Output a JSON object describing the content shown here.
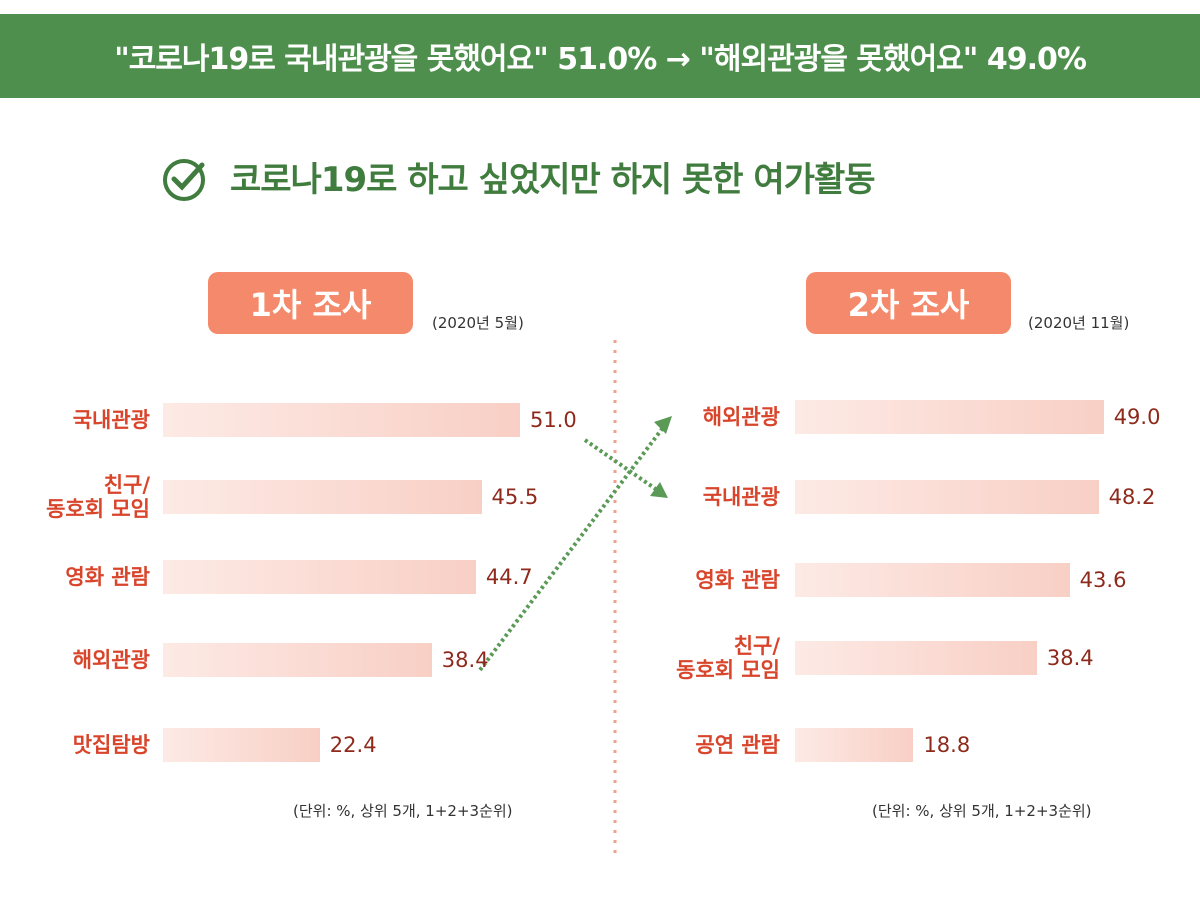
{
  "header": {
    "banner": "\"코로나19로 국내관광을 못했어요\" 51.0% → \"해외관광을 못했어요\" 49.0%",
    "title": "코로나19로 하고 싶었지만 하지 못한 여가활동"
  },
  "chart_data": [
    {
      "type": "bar",
      "title": "1차 조사",
      "subtitle": "(2020년 5월)",
      "color": "#f8cfc5",
      "categories": [
        "국내관광",
        "친구/\n동호회 모임",
        "영화 관람",
        "해외관광",
        "맛집탐방"
      ],
      "values": [
        51.0,
        45.5,
        44.7,
        38.4,
        22.4
      ],
      "value_labels": [
        "51.0",
        "45.5",
        "44.7",
        "38.4",
        "22.4"
      ],
      "note": "(단위: %, 상위 5개, 1+2+3순위)"
    },
    {
      "type": "bar",
      "title": "2차 조사",
      "subtitle": "(2020년 11월)",
      "color": "#f8cfc5",
      "categories": [
        "해외관광",
        "국내관광",
        "영화 관람",
        "친구/\n동호회 모임",
        "공연 관람"
      ],
      "values": [
        49.0,
        48.2,
        43.6,
        38.4,
        18.8
      ],
      "value_labels": [
        "49.0",
        "48.2",
        "43.6",
        "38.4",
        "18.8"
      ],
      "note": "(단위: %, 상위 5개, 1+2+3순위)"
    }
  ]
}
